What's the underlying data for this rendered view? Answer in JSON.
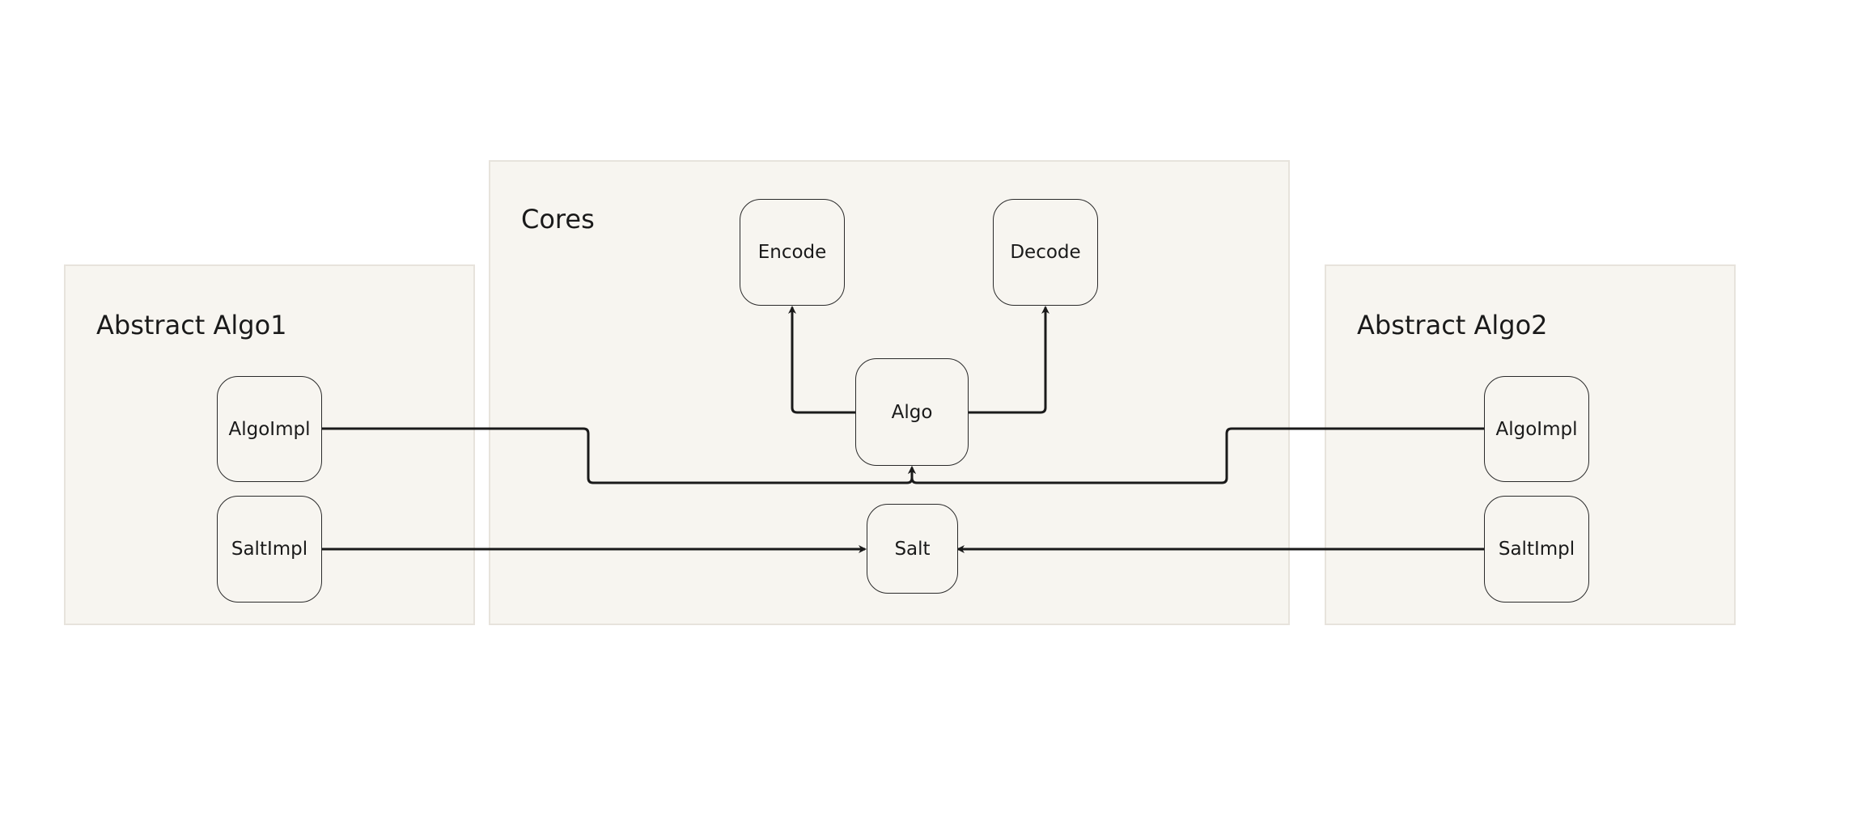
{
  "diagram": {
    "groups": {
      "abstract_algo1": {
        "title": "Abstract Algo1"
      },
      "cores": {
        "title": "Cores"
      },
      "abstract_algo2": {
        "title": "Abstract Algo2"
      }
    },
    "nodes": {
      "encode": {
        "label": "Encode"
      },
      "decode": {
        "label": "Decode"
      },
      "algo": {
        "label": "Algo"
      },
      "salt": {
        "label": "Salt"
      },
      "algoimpl_1": {
        "label": "AlgoImpl"
      },
      "saltimpl_1": {
        "label": "SaltImpl"
      },
      "algoimpl_2": {
        "label": "AlgoImpl"
      },
      "saltimpl_2": {
        "label": "SaltImpl"
      }
    },
    "edges": [
      {
        "from": "Algo",
        "to": "Encode"
      },
      {
        "from": "Algo",
        "to": "Decode"
      },
      {
        "from": "AlgoImpl (Abstract Algo1)",
        "to": "Algo"
      },
      {
        "from": "AlgoImpl (Abstract Algo2)",
        "to": "Algo"
      },
      {
        "from": "SaltImpl (Abstract Algo1)",
        "to": "Salt"
      },
      {
        "from": "SaltImpl (Abstract Algo2)",
        "to": "Salt"
      }
    ],
    "colors": {
      "group_fill": "#f7f5f0",
      "group_border": "#e7e3dc",
      "node_border": "#2a2a2a",
      "edge": "#1a1a1a"
    }
  }
}
